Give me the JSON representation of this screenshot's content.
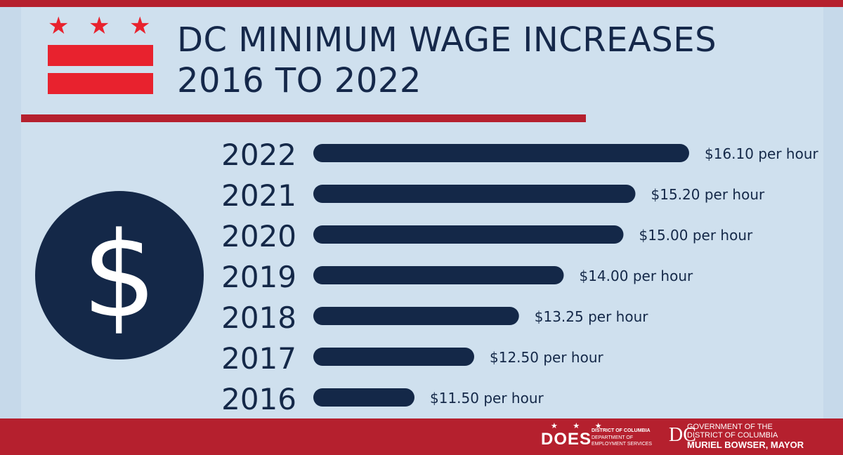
{
  "header": {
    "title_line1": "DC MINIMUM WAGE INCREASES",
    "title_line2": "2016 TO 2022"
  },
  "icons": {
    "flag": "dc-flag-icon",
    "flag_stars": "★",
    "currency": "$"
  },
  "colors": {
    "background": "#cfe0ee",
    "navy": "#142848",
    "red": "#b5202e",
    "flag_red": "#e8222e"
  },
  "chart_data": {
    "type": "bar",
    "orientation": "horizontal",
    "categories": [
      "2022",
      "2021",
      "2020",
      "2019",
      "2018",
      "2017",
      "2016"
    ],
    "values": [
      16.1,
      15.2,
      15.0,
      14.0,
      13.25,
      12.5,
      11.5
    ],
    "labels": [
      "$16.10 per hour",
      "$15.20 per hour",
      "$15.00 per hour",
      "$14.00 per hour",
      "$13.25 per hour",
      "$12.50 per hour",
      "$11.50 per hour"
    ],
    "title": "",
    "xlabel": "",
    "ylabel": "",
    "bar_color": "#142848",
    "grid": false
  },
  "footer": {
    "does_stars": "★ ★ ★",
    "does_word": "DOES",
    "does_line1": "DISTRICT OF COLUMBIA",
    "does_line2": "DEPARTMENT OF",
    "does_line3": "EMPLOYMENT SERVICES",
    "gov_mark": "DC",
    "gov_line1": "GOVERNMENT OF THE",
    "gov_line2": "DISTRICT OF COLUMBIA",
    "gov_line3": "MURIEL BOWSER, MAYOR"
  }
}
